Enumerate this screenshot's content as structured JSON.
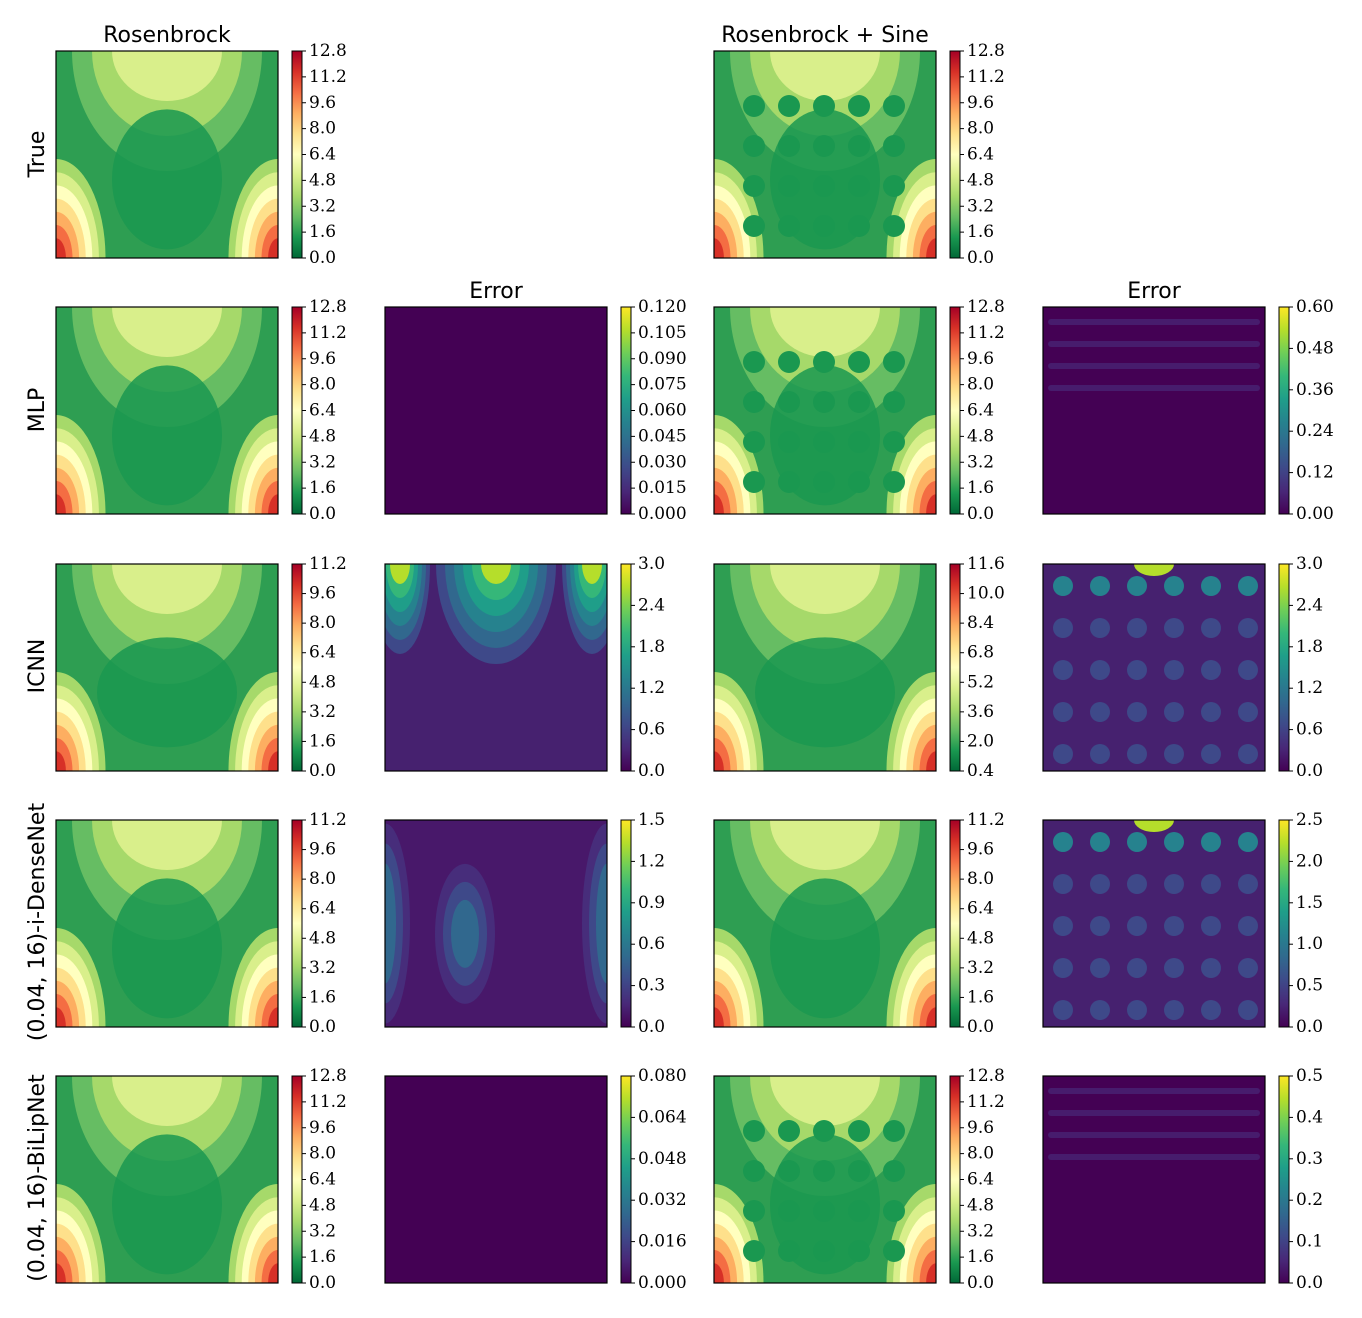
{
  "figure": {
    "column_titles": {
      "rosenbrock": "Rosenbrock",
      "rosenbrock_sine": "Rosenbrock + Sine",
      "error_left": "Error",
      "error_right": "Error"
    },
    "row_labels": [
      "True",
      "MLP",
      "ICNN",
      "(0.04, 16)-i-DenseNet",
      "(0.04, 16)-BiLipNet"
    ]
  },
  "colors": {
    "frame": "#000000",
    "spectral_r": [
      "#006837",
      "#1a9850",
      "#66bd63",
      "#a6d96a",
      "#d9ef8b",
      "#ffffbf",
      "#fee08b",
      "#fdae61",
      "#f46d43",
      "#d73027",
      "#a50026"
    ],
    "viridis": [
      "#440154",
      "#482878",
      "#3e4989",
      "#31688e",
      "#26828e",
      "#1f9e89",
      "#35b779",
      "#6ece58",
      "#b5de2b",
      "#fde725"
    ]
  },
  "chart_data": [
    {
      "type": "heatmap",
      "panel": "True / Rosenbrock",
      "colormap": "RdYlGn_r",
      "colorbar_ticks": [
        "12.8",
        "11.2",
        "9.6",
        "8.0",
        "6.4",
        "4.8",
        "3.2",
        "1.6",
        "0.0"
      ]
    },
    {
      "type": "heatmap",
      "panel": "True / Rosenbrock + Sine",
      "colormap": "RdYlGn_r",
      "colorbar_ticks": [
        "12.8",
        "11.2",
        "9.6",
        "8.0",
        "6.4",
        "4.8",
        "3.2",
        "1.6",
        "0.0"
      ]
    },
    {
      "type": "heatmap",
      "panel": "MLP / Rosenbrock",
      "colormap": "RdYlGn_r",
      "colorbar_ticks": [
        "12.8",
        "11.2",
        "9.6",
        "8.0",
        "6.4",
        "4.8",
        "3.2",
        "1.6",
        "0.0"
      ]
    },
    {
      "type": "heatmap",
      "panel": "MLP / Rosenbrock Error",
      "colormap": "viridis",
      "colorbar_ticks": [
        "0.120",
        "0.105",
        "0.090",
        "0.075",
        "0.060",
        "0.045",
        "0.030",
        "0.015",
        "0.000"
      ]
    },
    {
      "type": "heatmap",
      "panel": "MLP / Rosenbrock + Sine",
      "colormap": "RdYlGn_r",
      "colorbar_ticks": [
        "12.8",
        "11.2",
        "9.6",
        "8.0",
        "6.4",
        "4.8",
        "3.2",
        "1.6",
        "0.0"
      ]
    },
    {
      "type": "heatmap",
      "panel": "MLP / Rosenbrock + Sine Error",
      "colormap": "viridis",
      "colorbar_ticks": [
        "0.60",
        "0.48",
        "0.36",
        "0.24",
        "0.12",
        "0.00"
      ]
    },
    {
      "type": "heatmap",
      "panel": "ICNN / Rosenbrock",
      "colormap": "RdYlGn_r",
      "colorbar_ticks": [
        "11.2",
        "9.6",
        "8.0",
        "6.4",
        "4.8",
        "3.2",
        "1.6",
        "0.0"
      ]
    },
    {
      "type": "heatmap",
      "panel": "ICNN / Rosenbrock Error",
      "colormap": "viridis",
      "colorbar_ticks": [
        "3.0",
        "2.4",
        "1.8",
        "1.2",
        "0.6",
        "0.0"
      ]
    },
    {
      "type": "heatmap",
      "panel": "ICNN / Rosenbrock + Sine",
      "colormap": "RdYlGn_r",
      "colorbar_ticks": [
        "11.6",
        "10.0",
        "8.4",
        "6.8",
        "5.2",
        "3.6",
        "2.0",
        "0.4"
      ]
    },
    {
      "type": "heatmap",
      "panel": "ICNN / Rosenbrock + Sine Error",
      "colormap": "viridis",
      "colorbar_ticks": [
        "3.0",
        "2.4",
        "1.8",
        "1.2",
        "0.6",
        "0.0"
      ]
    },
    {
      "type": "heatmap",
      "panel": "i-DenseNet / Rosenbrock",
      "colormap": "RdYlGn_r",
      "colorbar_ticks": [
        "11.2",
        "9.6",
        "8.0",
        "6.4",
        "4.8",
        "3.2",
        "1.6",
        "0.0"
      ]
    },
    {
      "type": "heatmap",
      "panel": "i-DenseNet / Rosenbrock Error",
      "colormap": "viridis",
      "colorbar_ticks": [
        "1.5",
        "1.2",
        "0.9",
        "0.6",
        "0.3",
        "0.0"
      ]
    },
    {
      "type": "heatmap",
      "panel": "i-DenseNet / Rosenbrock + Sine",
      "colormap": "RdYlGn_r",
      "colorbar_ticks": [
        "11.2",
        "9.6",
        "8.0",
        "6.4",
        "4.8",
        "3.2",
        "1.6",
        "0.0"
      ]
    },
    {
      "type": "heatmap",
      "panel": "i-DenseNet / Rosenbrock + Sine Error",
      "colormap": "viridis",
      "colorbar_ticks": [
        "2.5",
        "2.0",
        "1.5",
        "1.0",
        "0.5",
        "0.0"
      ]
    },
    {
      "type": "heatmap",
      "panel": "BiLipNet / Rosenbrock",
      "colormap": "RdYlGn_r",
      "colorbar_ticks": [
        "12.8",
        "11.2",
        "9.6",
        "8.0",
        "6.4",
        "4.8",
        "3.2",
        "1.6",
        "0.0"
      ]
    },
    {
      "type": "heatmap",
      "panel": "BiLipNet / Rosenbrock Error",
      "colormap": "viridis",
      "colorbar_ticks": [
        "0.080",
        "0.064",
        "0.048",
        "0.032",
        "0.016",
        "0.000"
      ]
    },
    {
      "type": "heatmap",
      "panel": "BiLipNet / Rosenbrock + Sine",
      "colormap": "RdYlGn_r",
      "colorbar_ticks": [
        "12.8",
        "11.2",
        "9.6",
        "8.0",
        "6.4",
        "4.8",
        "3.2",
        "1.6",
        "0.0"
      ]
    },
    {
      "type": "heatmap",
      "panel": "BiLipNet / Rosenbrock + Sine Error",
      "colormap": "viridis",
      "colorbar_ticks": [
        "0.5",
        "0.4",
        "0.3",
        "0.2",
        "0.1",
        "0.0"
      ]
    }
  ]
}
